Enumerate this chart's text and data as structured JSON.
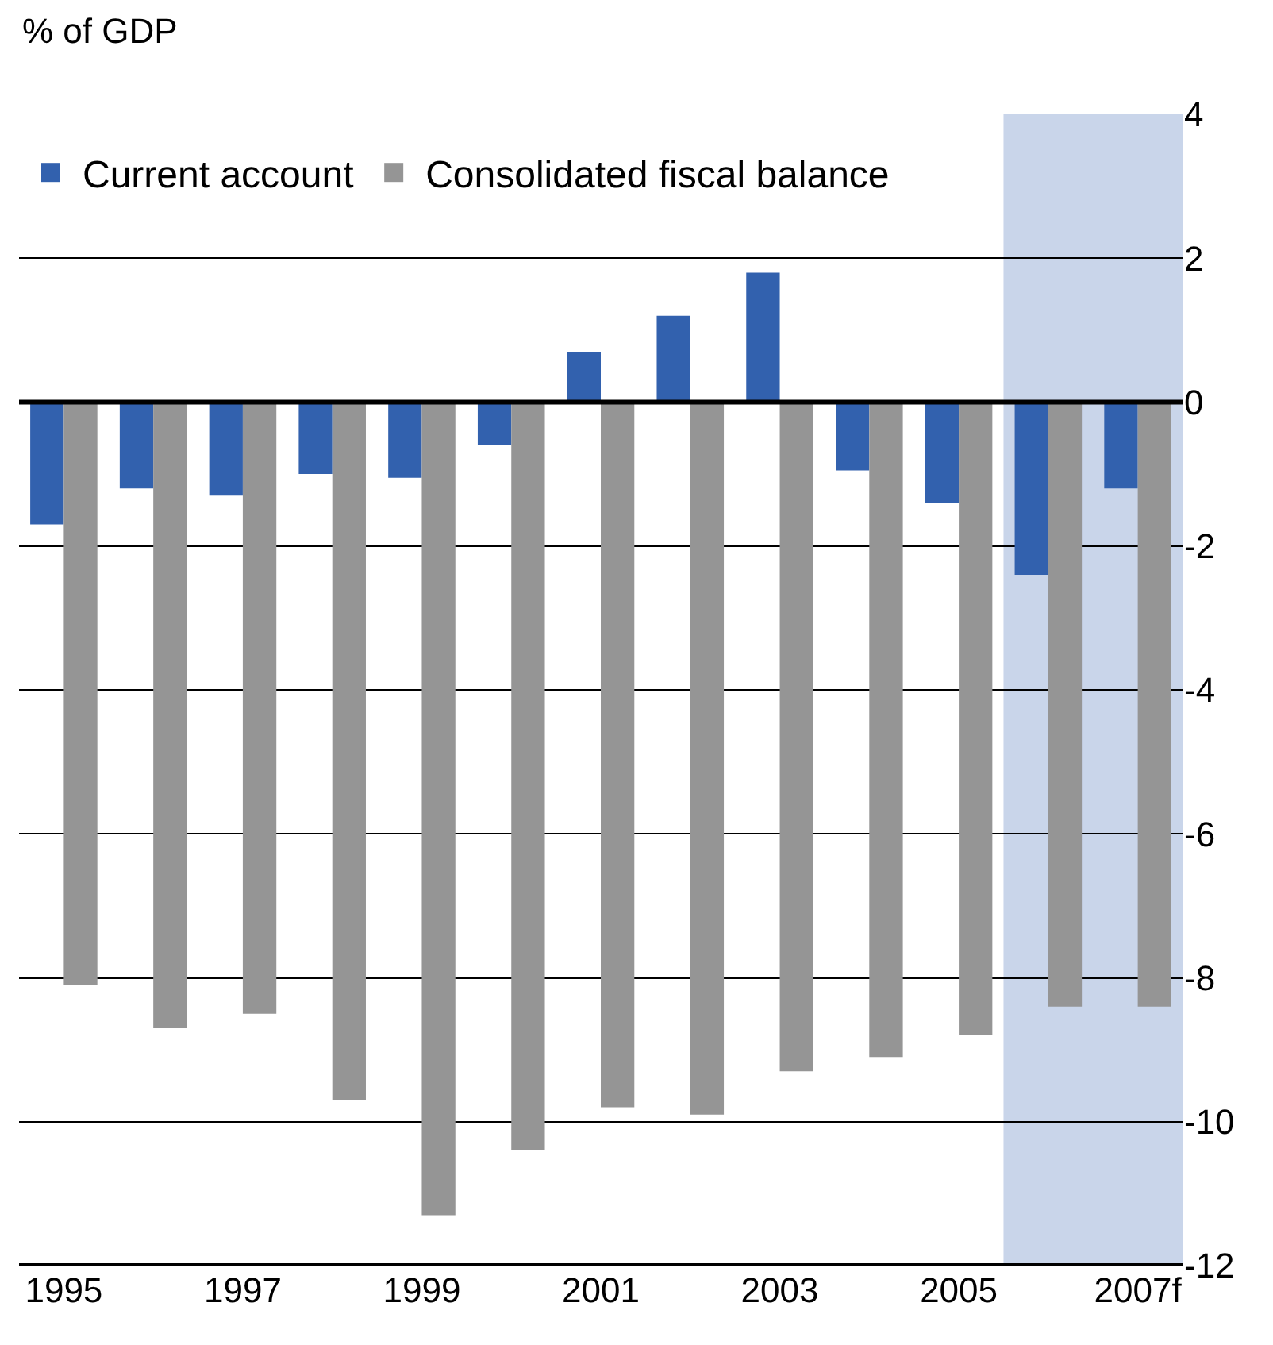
{
  "chart_data": {
    "type": "bar",
    "ylabel": "% of GDP",
    "categories": [
      "1995",
      null,
      "1997",
      null,
      "1999",
      null,
      "2001",
      null,
      "2003",
      null,
      "2005",
      null,
      "2007f"
    ],
    "series": [
      {
        "name": "Current account",
        "color": "#3261ae",
        "values": [
          -1.7,
          -1.2,
          -1.3,
          -1.0,
          -1.05,
          -0.6,
          0.7,
          1.2,
          1.8,
          -0.95,
          -1.4,
          -2.4,
          -1.2
        ]
      },
      {
        "name": "Consolidated fiscal balance",
        "color": "#959595",
        "values": [
          -8.1,
          -8.7,
          -8.5,
          -9.7,
          -11.3,
          -10.4,
          -9.8,
          -9.9,
          -9.3,
          -9.1,
          -8.8,
          -8.4,
          -8.4
        ]
      }
    ],
    "ylim": [
      -12,
      4
    ],
    "yticks": [
      -12,
      -10,
      -8,
      -6,
      -4,
      -2,
      0,
      2,
      4
    ],
    "ref_lines": [
      {
        "axis": "y",
        "value": 0,
        "color": "#000000"
      }
    ],
    "grid": "y",
    "legend": "top left"
  }
}
